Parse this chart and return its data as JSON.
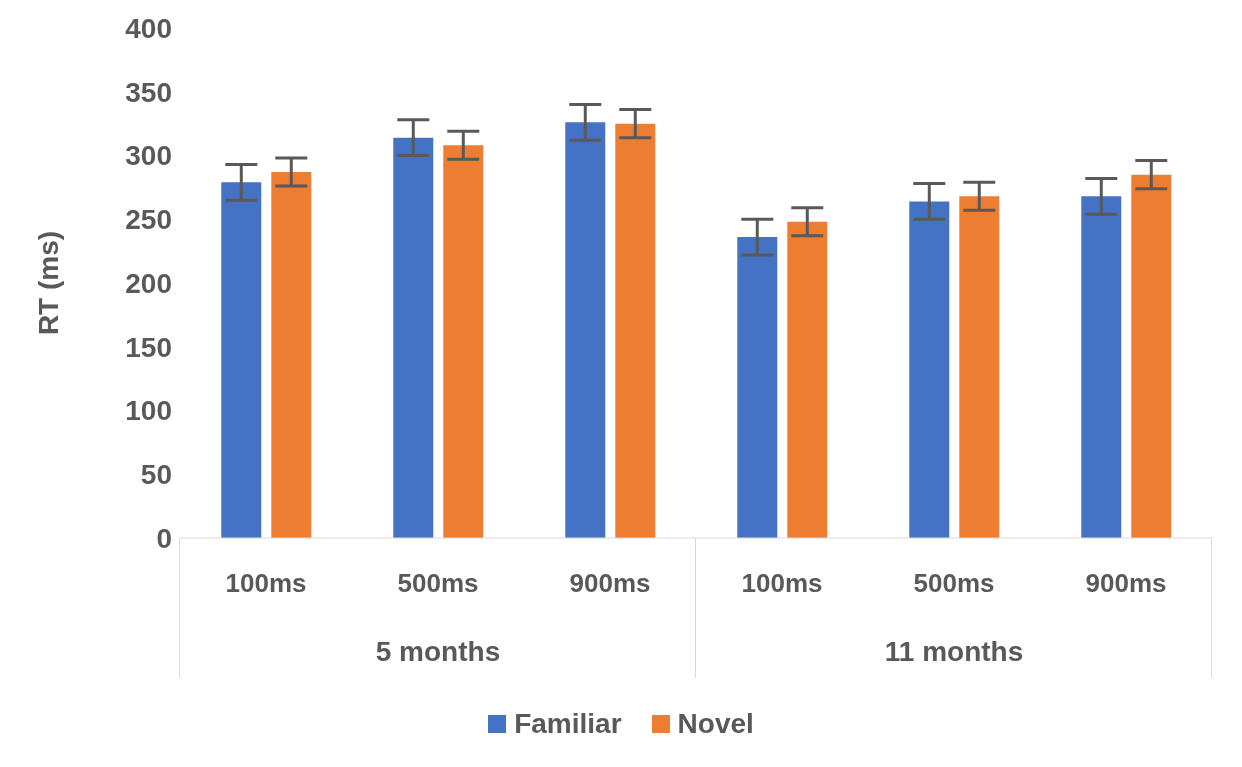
{
  "chart_data": {
    "type": "bar",
    "ylabel": "RT (ms)",
    "categories": [
      "100ms",
      "500ms",
      "900ms",
      "100ms",
      "500ms",
      "900ms"
    ],
    "series": [
      {
        "name": "Familiar",
        "color": "#4472c4",
        "values": [
          279,
          314,
          326,
          236,
          264,
          268
        ],
        "errors": [
          14,
          14,
          14,
          14,
          14,
          14
        ]
      },
      {
        "name": "Novel",
        "color": "#ed7d31",
        "values": [
          287,
          308,
          325,
          248,
          268,
          285
        ],
        "errors": [
          11,
          11,
          11,
          11,
          11,
          11
        ]
      }
    ],
    "annotations": [
      "5 months",
      "11 months"
    ],
    "ylim": [
      0,
      400
    ],
    "yticks": [
      0,
      50,
      100,
      150,
      200,
      250,
      300,
      350,
      400
    ],
    "grid": false,
    "legend": "bottom"
  }
}
